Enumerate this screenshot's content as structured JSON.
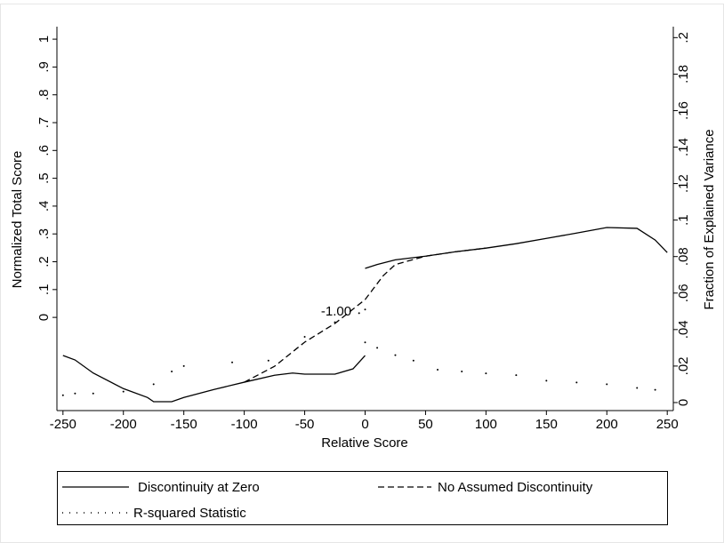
{
  "chart_data": {
    "type": "line",
    "xlabel": "Relative Score",
    "ylabel": "Normalized Total Score",
    "y2label": "Fraction of Explained Variance",
    "annotation": "-1.00",
    "xlim": [
      -255,
      255
    ],
    "xticks": [
      -250,
      -200,
      -150,
      -100,
      -50,
      0,
      50,
      100,
      150,
      200,
      250
    ],
    "ylim": [
      -0.335,
      1.045
    ],
    "yticks": [
      0,
      {
        "value": 0.1,
        "label": ".1"
      },
      {
        "value": 0.2,
        "label": ".2"
      },
      {
        "value": 0.3,
        "label": ".3"
      },
      {
        "value": 0.4,
        "label": ".4"
      },
      {
        "value": 0.5,
        "label": ".5"
      },
      {
        "value": 0.6,
        "label": ".6"
      },
      {
        "value": 0.7,
        "label": ".7"
      },
      {
        "value": 0.8,
        "label": ".8"
      },
      {
        "value": 0.9,
        "label": ".9"
      },
      1
    ],
    "y2lim": [
      -0.0044,
      0.206
    ],
    "y2ticks": [
      0,
      {
        "value": 0.02,
        "label": ".02"
      },
      {
        "value": 0.04,
        "label": ".04"
      },
      {
        "value": 0.06,
        "label": ".06"
      },
      {
        "value": 0.08,
        "label": ".08"
      },
      {
        "value": 0.1,
        "label": ".1"
      },
      {
        "value": 0.12,
        "label": ".12"
      },
      {
        "value": 0.14,
        "label": ".14"
      },
      {
        "value": 0.16,
        "label": ".16"
      },
      {
        "value": 0.18,
        "label": ".18"
      },
      {
        "value": 0.2,
        "label": ".2"
      }
    ],
    "series": [
      {
        "name": "Discontinuity at Zero",
        "color": "#000000",
        "style": "solid",
        "x": [
          -250,
          -240,
          -225,
          -200,
          -180,
          -175,
          -160,
          -150,
          -125,
          -100,
          -75,
          -60,
          -50,
          -25,
          -10,
          0,
          null,
          0,
          10,
          25,
          50,
          75,
          100,
          125,
          150,
          175,
          200,
          225,
          240,
          250
        ],
        "values": [
          -0.137,
          -0.153,
          -0.2,
          -0.256,
          -0.288,
          -0.303,
          -0.303,
          -0.288,
          -0.259,
          -0.233,
          -0.208,
          -0.2,
          -0.204,
          -0.204,
          -0.185,
          -0.137,
          null,
          0.176,
          0.19,
          0.207,
          0.22,
          0.236,
          0.249,
          0.265,
          0.284,
          0.303,
          0.323,
          0.32,
          0.278,
          0.233
        ]
      },
      {
        "name": "No Assumed Discontinuity",
        "color": "#000000",
        "style": "dashed",
        "x": [
          -100,
          -75,
          -50,
          -25,
          0,
          15,
          25,
          50,
          75,
          100
        ],
        "values": [
          -0.233,
          -0.176,
          -0.089,
          -0.022,
          0.064,
          0.15,
          0.19,
          0.22,
          0.236,
          0.249
        ]
      },
      {
        "name": "R-squared Statistic",
        "color": "#000000",
        "style": "dotted",
        "axis": "y2",
        "x": [
          -250,
          -240,
          -225,
          -200,
          -175,
          -160,
          -150,
          -110,
          -80,
          -50,
          -25,
          -5,
          0,
          0,
          10,
          25,
          40,
          60,
          80,
          100,
          125,
          150,
          175,
          200,
          225,
          240
        ],
        "values": [
          0.004,
          0.005,
          0.005,
          0.006,
          0.01,
          0.017,
          0.02,
          0.022,
          0.023,
          0.036,
          0.044,
          0.049,
          0.051,
          0.033,
          0.03,
          0.026,
          0.023,
          0.018,
          0.017,
          0.016,
          0.015,
          0.012,
          0.011,
          0.01,
          0.008,
          0.007
        ]
      }
    ]
  }
}
